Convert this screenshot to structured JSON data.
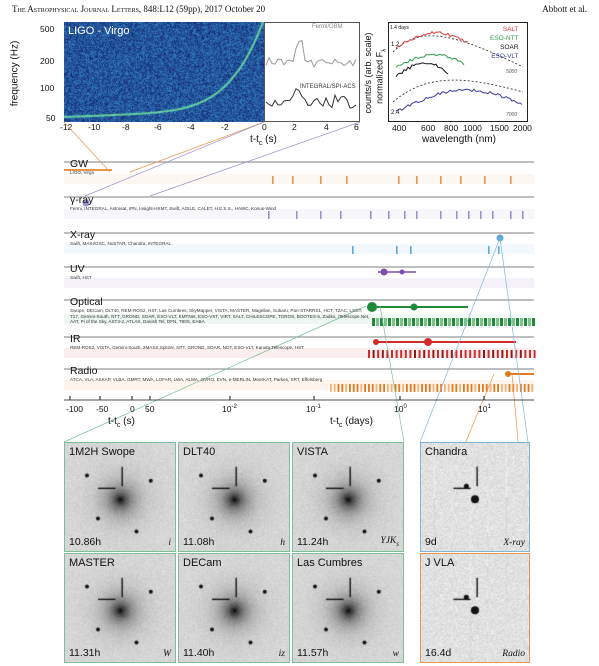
{
  "header": {
    "journal": "The Astrophysical Journal Letters",
    "citation": "848:L12 (59pp), 2017 October 20",
    "authors": "Abbott et al."
  },
  "spectrogram": {
    "title": "LIGO - Virgo",
    "ylabel": "frequency (Hz)",
    "yticks": [
      "500",
      "200",
      "100",
      "50"
    ],
    "xticks": [
      "-12",
      "-10",
      "-8",
      "-6",
      "-4",
      "-2",
      "0",
      "2",
      "4",
      "6"
    ],
    "xlabel": "t-t",
    "xlabel_sub": "c",
    "xlabel_unit": " (s)"
  },
  "gamma_lc": {
    "label_top": "Fermi/GBM",
    "label_bottom": "INTEGRAL/SPI-ACS",
    "ylabel": "counts/s (arb. scale)"
  },
  "spectra": {
    "ylabel": "normalized F",
    "ylabel_sub": "λ",
    "xlabel": "wavelength (nm)",
    "xticks": [
      "400",
      "600",
      "800",
      "1000",
      "1500",
      "2000"
    ],
    "epochs": [
      "1.4 days",
      "1.2",
      "2.4"
    ],
    "temps": [
      "5000",
      "7000"
    ],
    "legend": [
      {
        "name": "SALT",
        "color": "#e03a3a"
      },
      {
        "name": "ESO-NTT",
        "color": "#2e9e4a"
      },
      {
        "name": "SOAR",
        "color": "#111111"
      },
      {
        "name": "ESO-VLT",
        "color": "#3a3a9e"
      }
    ]
  },
  "bands": [
    {
      "name": "GW",
      "facilities": "LIGO, Virgo",
      "color": "#e8944a"
    },
    {
      "name": "γ-ray",
      "facilities": "Fermi, INTEGRAL, Astrosat, IPN, Insight-HXMT, Swift, AGILE, CALET, H.E.S.S., HAWC, Konus-Wind",
      "color": "#9a8fd0"
    },
    {
      "name": "X-ray",
      "facilities": "Swift, MAXI/GSC, NuSTAR, Chandra, INTEGRAL",
      "color": "#5ea8e0"
    },
    {
      "name": "UV",
      "facilities": "Swift, HST",
      "color": "#7b4fb0"
    },
    {
      "name": "Optical",
      "facilities": "Swope, DECam, DLT40, REM-ROS2, HST, Las Cumbres, SkyMapper, VISTA, MASTER, Magellan, Subaru, Pan-STARRS1, HCT, TZAC, LSGT, T17, Gemini-South, NTT, GROND, SOAR, ESO-VLT, KMTNet, ESO-VST, VIRT, SALT, CHILESCOPE, TOROS, BOOTES-5, Zadko, iTelescope.Net, AAT, Pi of the Sky, AST3-2, ATLAS, Danish Tel, DFN, T80S, EABA",
      "color": "#1e8a3a"
    },
    {
      "name": "IR",
      "facilities": "REM-ROS2, VISTA, Gemini-South, 2MASS,Spitzer, NTT, GROND, SOAR, NOT, ESO-VLT, Kanata Telescope, HST",
      "color": "#d22b2b"
    },
    {
      "name": "Radio",
      "facilities": "ATCA, VLA, ASKAP, VLBA, GMRT, MWA, LOFAR, LWA, ALMA, OVRO, EVN, e-MERLIN, MeerKAT, Parkes, SRT, Effelsberg",
      "color": "#e07a1e"
    }
  ],
  "time_axis": {
    "lin_ticks": [
      "-100",
      "-50",
      "0",
      "50"
    ],
    "lin_label": "t-t",
    "lin_label_sub": "c",
    "lin_unit": " (s)",
    "log_ticks": [
      "10",
      "10",
      "10",
      "10"
    ],
    "log_exps": [
      "-2",
      "-1",
      "0",
      "1"
    ],
    "log_label": "t-t",
    "log_label_sub": "c",
    "log_unit": " (days)"
  },
  "thumbnails": [
    {
      "name": "1M2H Swope",
      "time": "10.86h",
      "filter": "i"
    },
    {
      "name": "DLT40",
      "time": "11.08h",
      "filter": "h"
    },
    {
      "name": "VISTA",
      "time": "11.24h",
      "filter": "YJK"
    },
    {
      "name": "MASTER",
      "time": "11.31h",
      "filter": "W"
    },
    {
      "name": "DECam",
      "time": "11.40h",
      "filter": "iz"
    },
    {
      "name": "Las Cumbres",
      "time": "11.57h",
      "filter": "w"
    },
    {
      "name": "Chandra",
      "time": "9d",
      "filter": "X-ray"
    },
    {
      "name": "J VLA",
      "time": "16.4d",
      "filter": "Radio"
    }
  ],
  "thumb_filter_sub": "s"
}
